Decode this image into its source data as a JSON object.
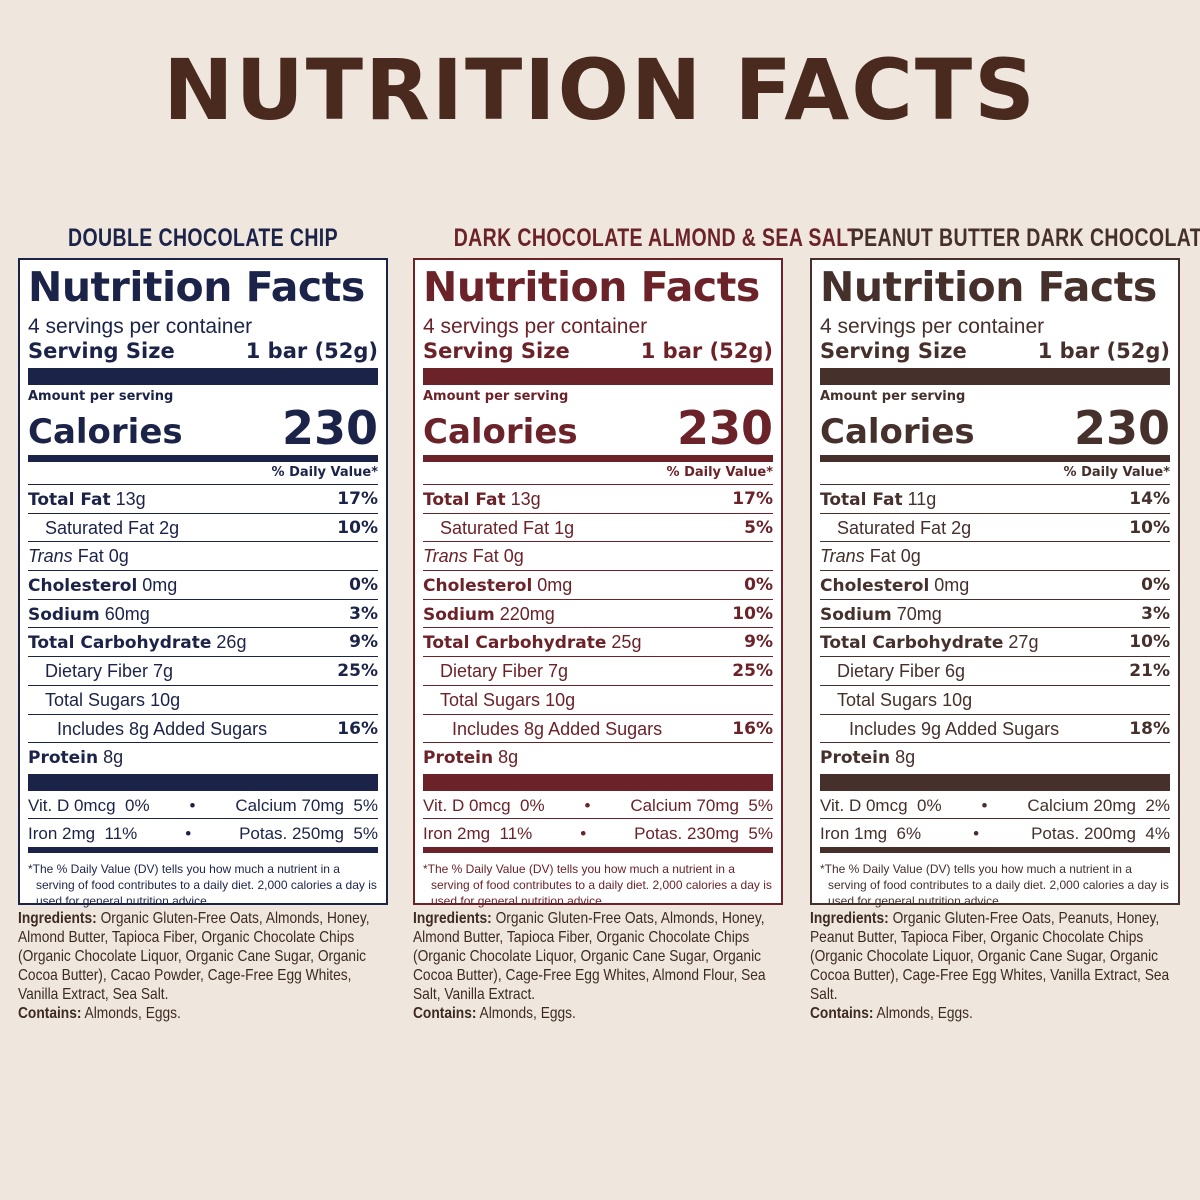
{
  "page": {
    "title": "NUTRITION FACTS"
  },
  "products": [
    {
      "name": "DOUBLE CHOCOLATE CHIP",
      "color": "#1c2348",
      "label_title": "Nutrition Facts",
      "servings": "4 servings per container",
      "serving_size_label": "Serving Size",
      "serving_size_value": "1 bar (52g)",
      "amount_per_serving": "Amount per serving",
      "calories_label": "Calories",
      "calories_value": "230",
      "dv_header": "% Daily Value*",
      "nutrients": [
        {
          "bold": "Total Fat",
          "amount": "13g",
          "pct": "17%"
        },
        {
          "label": "Saturated Fat",
          "amount": "2g",
          "pct": "10%"
        },
        {
          "italic": "Trans",
          "label": "Fat",
          "amount": "0g",
          "pct": ""
        },
        {
          "bold": "Cholesterol",
          "amount": "0mg",
          "pct": "0%"
        },
        {
          "bold": "Sodium",
          "amount": "60mg",
          "pct": "3%"
        },
        {
          "bold": "Total Carbohydrate",
          "amount": "26g",
          "pct": "9%"
        },
        {
          "label": "Dietary Fiber",
          "amount": "7g",
          "pct": "25%"
        },
        {
          "label": "Total Sugars",
          "amount": "10g",
          "pct": ""
        },
        {
          "label": "Includes 8g Added Sugars",
          "amount": "",
          "pct": "16%"
        },
        {
          "bold": "Protein",
          "amount": "8g",
          "pct": ""
        }
      ],
      "vitamins": [
        {
          "left": "Vit. D 0mcg  0%",
          "right": "Calcium 70mg  5%"
        },
        {
          "left": "Iron 2mg  11%",
          "right": "Potas. 250mg  5%"
        }
      ],
      "footnote": "*The % Daily Value (DV) tells you how much a nutrient in a serving of food contributes to a daily diet. 2,000 calories a day is used for general nutrition advice.",
      "ingredients_label": "Ingredients:",
      "ingredients": "Organic Gluten-Free Oats, Almonds, Honey, Almond Butter, Tapioca Fiber, Organic Chocolate Chips (Organic Chocolate Liquor, Organic Cane Sugar, Organic Cocoa Butter), Cacao Powder, Cage-Free Egg Whites, Vanilla Extract, Sea Salt.",
      "contains_label": "Contains:",
      "contains": "Almonds, Eggs."
    },
    {
      "name": "DARK CHOCOLATE ALMOND & SEA SALT",
      "color": "#6b2228",
      "label_title": "Nutrition Facts",
      "servings": "4 servings per container",
      "serving_size_label": "Serving Size",
      "serving_size_value": "1 bar (52g)",
      "amount_per_serving": "Amount per serving",
      "calories_label": "Calories",
      "calories_value": "230",
      "dv_header": "% Daily Value*",
      "nutrients": [
        {
          "bold": "Total Fat",
          "amount": "13g",
          "pct": "17%"
        },
        {
          "label": "Saturated Fat",
          "amount": "1g",
          "pct": "5%"
        },
        {
          "italic": "Trans",
          "label": "Fat",
          "amount": "0g",
          "pct": ""
        },
        {
          "bold": "Cholesterol",
          "amount": "0mg",
          "pct": "0%"
        },
        {
          "bold": "Sodium",
          "amount": "220mg",
          "pct": "10%"
        },
        {
          "bold": "Total Carbohydrate",
          "amount": "25g",
          "pct": "9%"
        },
        {
          "label": "Dietary Fiber",
          "amount": "7g",
          "pct": "25%"
        },
        {
          "label": "Total Sugars",
          "amount": "10g",
          "pct": ""
        },
        {
          "label": "Includes 8g Added Sugars",
          "amount": "",
          "pct": "16%"
        },
        {
          "bold": "Protein",
          "amount": "8g",
          "pct": ""
        }
      ],
      "vitamins": [
        {
          "left": "Vit. D 0mcg  0%",
          "right": "Calcium 70mg  5%"
        },
        {
          "left": "Iron 2mg  11%",
          "right": "Potas. 230mg  5%"
        }
      ],
      "footnote": "*The % Daily Value (DV) tells you how much a nutrient in a serving of food contributes to a daily diet. 2,000 calories a day is used for general nutrition advice.",
      "ingredients_label": "Ingredients:",
      "ingredients": "Organic Gluten-Free Oats, Almonds, Honey, Almond Butter, Tapioca Fiber, Organic Chocolate Chips (Organic Chocolate Liquor, Organic Cane Sugar, Organic Cocoa Butter), Cage-Free Egg Whites, Almond Flour, Sea Salt, Vanilla Extract.",
      "contains_label": "Contains:",
      "contains": "Almonds, Eggs."
    },
    {
      "name": "PEANUT BUTTER DARK CHOCOLATE",
      "color": "#45302c",
      "label_title": "Nutrition Facts",
      "servings": "4 servings per container",
      "serving_size_label": "Serving Size",
      "serving_size_value": "1 bar (52g)",
      "amount_per_serving": "Amount per serving",
      "calories_label": "Calories",
      "calories_value": "230",
      "dv_header": "% Daily Value*",
      "nutrients": [
        {
          "bold": "Total Fat",
          "amount": "11g",
          "pct": "14%"
        },
        {
          "label": "Saturated Fat",
          "amount": "2g",
          "pct": "10%"
        },
        {
          "italic": "Trans",
          "label": "Fat",
          "amount": "0g",
          "pct": ""
        },
        {
          "bold": "Cholesterol",
          "amount": "0mg",
          "pct": "0%"
        },
        {
          "bold": "Sodium",
          "amount": "70mg",
          "pct": "3%"
        },
        {
          "bold": "Total Carbohydrate",
          "amount": "27g",
          "pct": "10%"
        },
        {
          "label": "Dietary Fiber",
          "amount": "6g",
          "pct": "21%"
        },
        {
          "label": "Total Sugars",
          "amount": "10g",
          "pct": ""
        },
        {
          "label": "Includes 9g Added Sugars",
          "amount": "",
          "pct": "18%"
        },
        {
          "bold": "Protein",
          "amount": "8g",
          "pct": ""
        }
      ],
      "vitamins": [
        {
          "left": "Vit. D 0mcg  0%",
          "right": "Calcium 20mg  2%"
        },
        {
          "left": "Iron 1mg  6%",
          "right": "Potas. 200mg  4%"
        }
      ],
      "footnote": "*The % Daily Value (DV) tells you how much a nutrient in a serving of food contributes to a daily diet. 2,000 calories a day is used for general nutrition advice.",
      "ingredients_label": "Ingredients:",
      "ingredients": "Organic Gluten-Free Oats, Peanuts, Honey, Peanut Butter, Tapioca Fiber, Organic Chocolate Chips (Organic Chocolate Liquor, Organic Cane Sugar, Organic Cocoa Butter), Cage-Free Egg Whites, Vanilla Extract, Sea Salt.",
      "contains_label": "Contains:",
      "contains": "Almonds, Eggs."
    }
  ]
}
